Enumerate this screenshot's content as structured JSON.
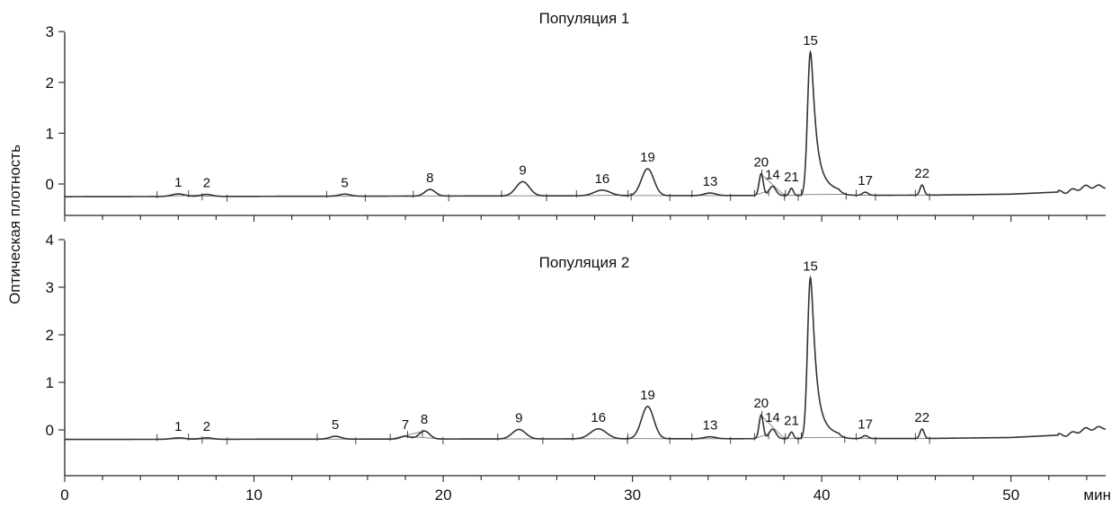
{
  "chart_data": {
    "type": "line",
    "ylabel": "Оптическая плотность",
    "x_unit": "мин",
    "xlim": [
      0,
      55
    ],
    "x_ticks": [
      0,
      10,
      20,
      30,
      40,
      50
    ],
    "panels": [
      {
        "title": "Популяция 1",
        "ylim": [
          -0.6,
          3
        ],
        "y_ticks": [
          0,
          1,
          2,
          3
        ],
        "baseline": -0.25,
        "noise": 0.0,
        "tail": [
          [
            45.5,
            -0.22
          ],
          [
            50,
            -0.2
          ],
          [
            53,
            -0.15
          ],
          [
            54,
            -0.05
          ],
          [
            55,
            -0.05
          ]
        ],
        "peaks": [
          {
            "label": "1",
            "rt": 6.0,
            "height": 0.05,
            "width": 0.7
          },
          {
            "label": "2",
            "rt": 7.5,
            "height": 0.04,
            "width": 0.6
          },
          {
            "label": "5",
            "rt": 14.8,
            "height": 0.04,
            "width": 0.6
          },
          {
            "label": "8",
            "rt": 19.3,
            "height": 0.13,
            "width": 0.55
          },
          {
            "label": "9",
            "rt": 24.2,
            "height": 0.28,
            "width": 0.7
          },
          {
            "label": "16",
            "rt": 28.4,
            "height": 0.11,
            "width": 0.85
          },
          {
            "label": "19",
            "rt": 30.8,
            "height": 0.53,
            "width": 0.65
          },
          {
            "label": "13",
            "rt": 34.1,
            "height": 0.05,
            "width": 0.6
          },
          {
            "label": "20",
            "rt": 36.8,
            "height": 0.43,
            "width": 0.22
          },
          {
            "label": "14",
            "rt": 37.4,
            "height": 0.18,
            "width": 0.35
          },
          {
            "label": "21",
            "rt": 38.4,
            "height": 0.14,
            "width": 0.2
          },
          {
            "label": "15",
            "rt": 39.4,
            "height": 2.82,
            "width": 0.3,
            "tail": 0.9
          },
          {
            "label": "17",
            "rt": 42.3,
            "height": 0.06,
            "width": 0.3
          },
          {
            "label": "22",
            "rt": 45.3,
            "height": 0.2,
            "width": 0.22
          }
        ]
      },
      {
        "title": "Популяция 2",
        "ylim": [
          -0.9,
          4
        ],
        "y_ticks": [
          0,
          1,
          2,
          3,
          4
        ],
        "baseline": -0.2,
        "noise": 0.0,
        "tail": [
          [
            45.5,
            -0.18
          ],
          [
            50,
            -0.16
          ],
          [
            53,
            -0.1
          ],
          [
            54,
            0.02
          ],
          [
            55,
            0.05
          ]
        ],
        "peaks": [
          {
            "label": "1",
            "rt": 6.0,
            "height": 0.03,
            "width": 0.7
          },
          {
            "label": "2",
            "rt": 7.5,
            "height": 0.03,
            "width": 0.6
          },
          {
            "label": "5",
            "rt": 14.3,
            "height": 0.06,
            "width": 0.6
          },
          {
            "label": "7",
            "rt": 18.0,
            "height": 0.06,
            "width": 0.5
          },
          {
            "label": "8",
            "rt": 19.0,
            "height": 0.17,
            "width": 0.55
          },
          {
            "label": "9",
            "rt": 24.0,
            "height": 0.2,
            "width": 0.7
          },
          {
            "label": "16",
            "rt": 28.2,
            "height": 0.21,
            "width": 0.85
          },
          {
            "label": "19",
            "rt": 30.8,
            "height": 0.68,
            "width": 0.65
          },
          {
            "label": "13",
            "rt": 34.1,
            "height": 0.04,
            "width": 0.6
          },
          {
            "label": "20",
            "rt": 36.8,
            "height": 0.5,
            "width": 0.22
          },
          {
            "label": "14",
            "rt": 37.4,
            "height": 0.2,
            "width": 0.35
          },
          {
            "label": "21",
            "rt": 38.4,
            "height": 0.14,
            "width": 0.2
          },
          {
            "label": "15",
            "rt": 39.4,
            "height": 3.38,
            "width": 0.3,
            "tail": 0.85
          },
          {
            "label": "17",
            "rt": 42.3,
            "height": 0.06,
            "width": 0.3
          },
          {
            "label": "22",
            "rt": 45.3,
            "height": 0.2,
            "width": 0.22
          }
        ]
      }
    ]
  }
}
